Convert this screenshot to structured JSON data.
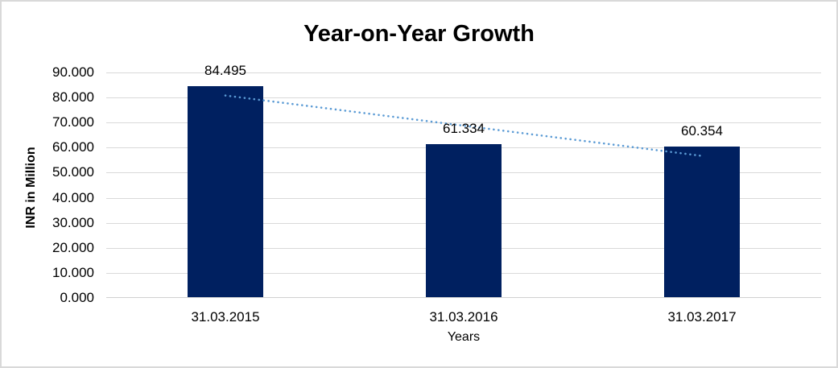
{
  "chart_data": {
    "type": "bar",
    "title": "Year-on-Year Growth",
    "categories": [
      "31.03.2015",
      "31.03.2016",
      "31.03.2017"
    ],
    "values": [
      84.495,
      61.334,
      60.354
    ],
    "data_labels": [
      "84.495",
      "61.334",
      "60.354"
    ],
    "xlabel": "Years",
    "ylabel": "INR in Million",
    "ylim": [
      0,
      90
    ],
    "yticks": [
      {
        "value": 90,
        "label": "90.000"
      },
      {
        "value": 80,
        "label": "80.000"
      },
      {
        "value": 70,
        "label": "70.000"
      },
      {
        "value": 60,
        "label": "60.000"
      },
      {
        "value": 50,
        "label": "50.000"
      },
      {
        "value": 40,
        "label": "40.000"
      },
      {
        "value": 30,
        "label": "30.000"
      },
      {
        "value": 20,
        "label": "20.000"
      },
      {
        "value": 10,
        "label": "10.000"
      },
      {
        "value": 0,
        "label": "0.000"
      }
    ],
    "grid": true,
    "legend": "none",
    "bar_color": "#002060",
    "trendline": {
      "type": "linear",
      "style": "dotted",
      "color": "#5B9BD5",
      "start_value": 80.8,
      "end_value": 56.7
    },
    "colors": {
      "gridline": "#D9D9D9",
      "axis_line": "#D0D0D0",
      "text": "#000000",
      "background": "#FFFFFF",
      "frame_border": "#D9D9D9"
    }
  }
}
